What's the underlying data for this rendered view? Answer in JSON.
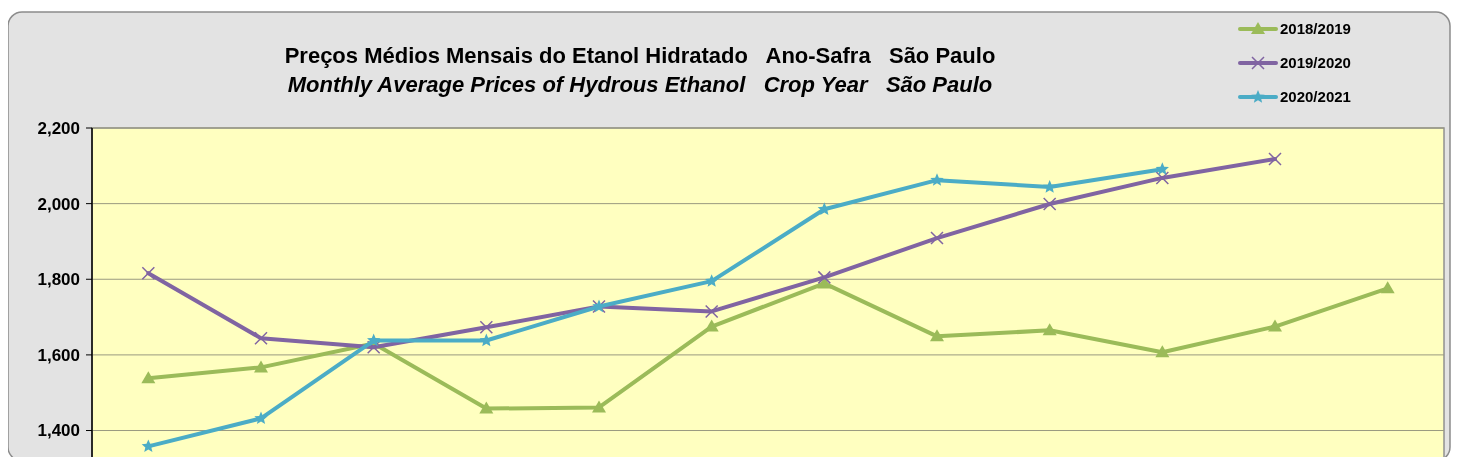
{
  "chart_data": {
    "type": "line",
    "title": "Preços Médios Mensais do Etanol Hidratado   Ano-Safra   São Paulo",
    "subtitle": "Monthly Average Prices of Hydrous Ethanol   Crop Year   São Paulo",
    "categories": [
      null,
      null,
      null,
      null,
      null,
      null,
      null,
      null,
      null,
      null,
      null,
      null
    ],
    "ylim": [
      1330,
      2200
    ],
    "yticks": [
      {
        "value": 1400,
        "label": "1,400"
      },
      {
        "value": 1600,
        "label": "1,600"
      },
      {
        "value": 1800,
        "label": "1,800"
      },
      {
        "value": 2000,
        "label": "2,000"
      },
      {
        "value": 2200,
        "label": "2,200"
      }
    ],
    "grid": "y",
    "legend": "top right",
    "tick_labels": "y",
    "series": [
      {
        "name": "2018/2019",
        "color": "#9bbb59",
        "marker": "triangle",
        "values": [
          1538,
          1567,
          1630,
          1458,
          1461,
          1675,
          1789,
          1649,
          1665,
          1607,
          1675,
          1776
        ]
      },
      {
        "name": "2019/2020",
        "color": "#8064a2",
        "marker": "cross",
        "values": [
          1816,
          1644,
          1620,
          1673,
          1728,
          1715,
          1805,
          1909,
          1999,
          2068,
          2118,
          null
        ]
      },
      {
        "name": "2020/2021",
        "color": "#4bacc6",
        "marker": "star",
        "values": [
          1358,
          1432,
          1638,
          1638,
          1728,
          1795,
          1985,
          2062,
          2044,
          2091,
          null,
          null
        ]
      }
    ]
  }
}
